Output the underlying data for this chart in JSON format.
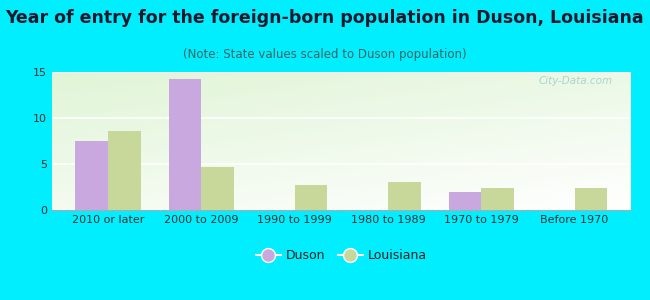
{
  "title": "Year of entry for the foreign-born population in Duson, Louisiana",
  "subtitle": "(Note: State values scaled to Duson population)",
  "categories": [
    "2010 or later",
    "2000 to 2009",
    "1990 to 1999",
    "1980 to 1989",
    "1970 to 1979",
    "Before 1970"
  ],
  "duson_values": [
    7.5,
    14.2,
    0,
    0,
    2.0,
    0
  ],
  "louisiana_values": [
    8.6,
    4.7,
    2.7,
    3.0,
    2.4,
    2.4
  ],
  "duson_color": "#c9a8e0",
  "louisiana_color": "#c8d89a",
  "ylim": [
    0,
    15
  ],
  "yticks": [
    0,
    5,
    10,
    15
  ],
  "background_color": "#00eeff",
  "bar_width": 0.35,
  "title_fontsize": 12.5,
  "subtitle_fontsize": 8.5,
  "tick_fontsize": 8,
  "legend_fontsize": 9,
  "watermark": "City-Data.com"
}
